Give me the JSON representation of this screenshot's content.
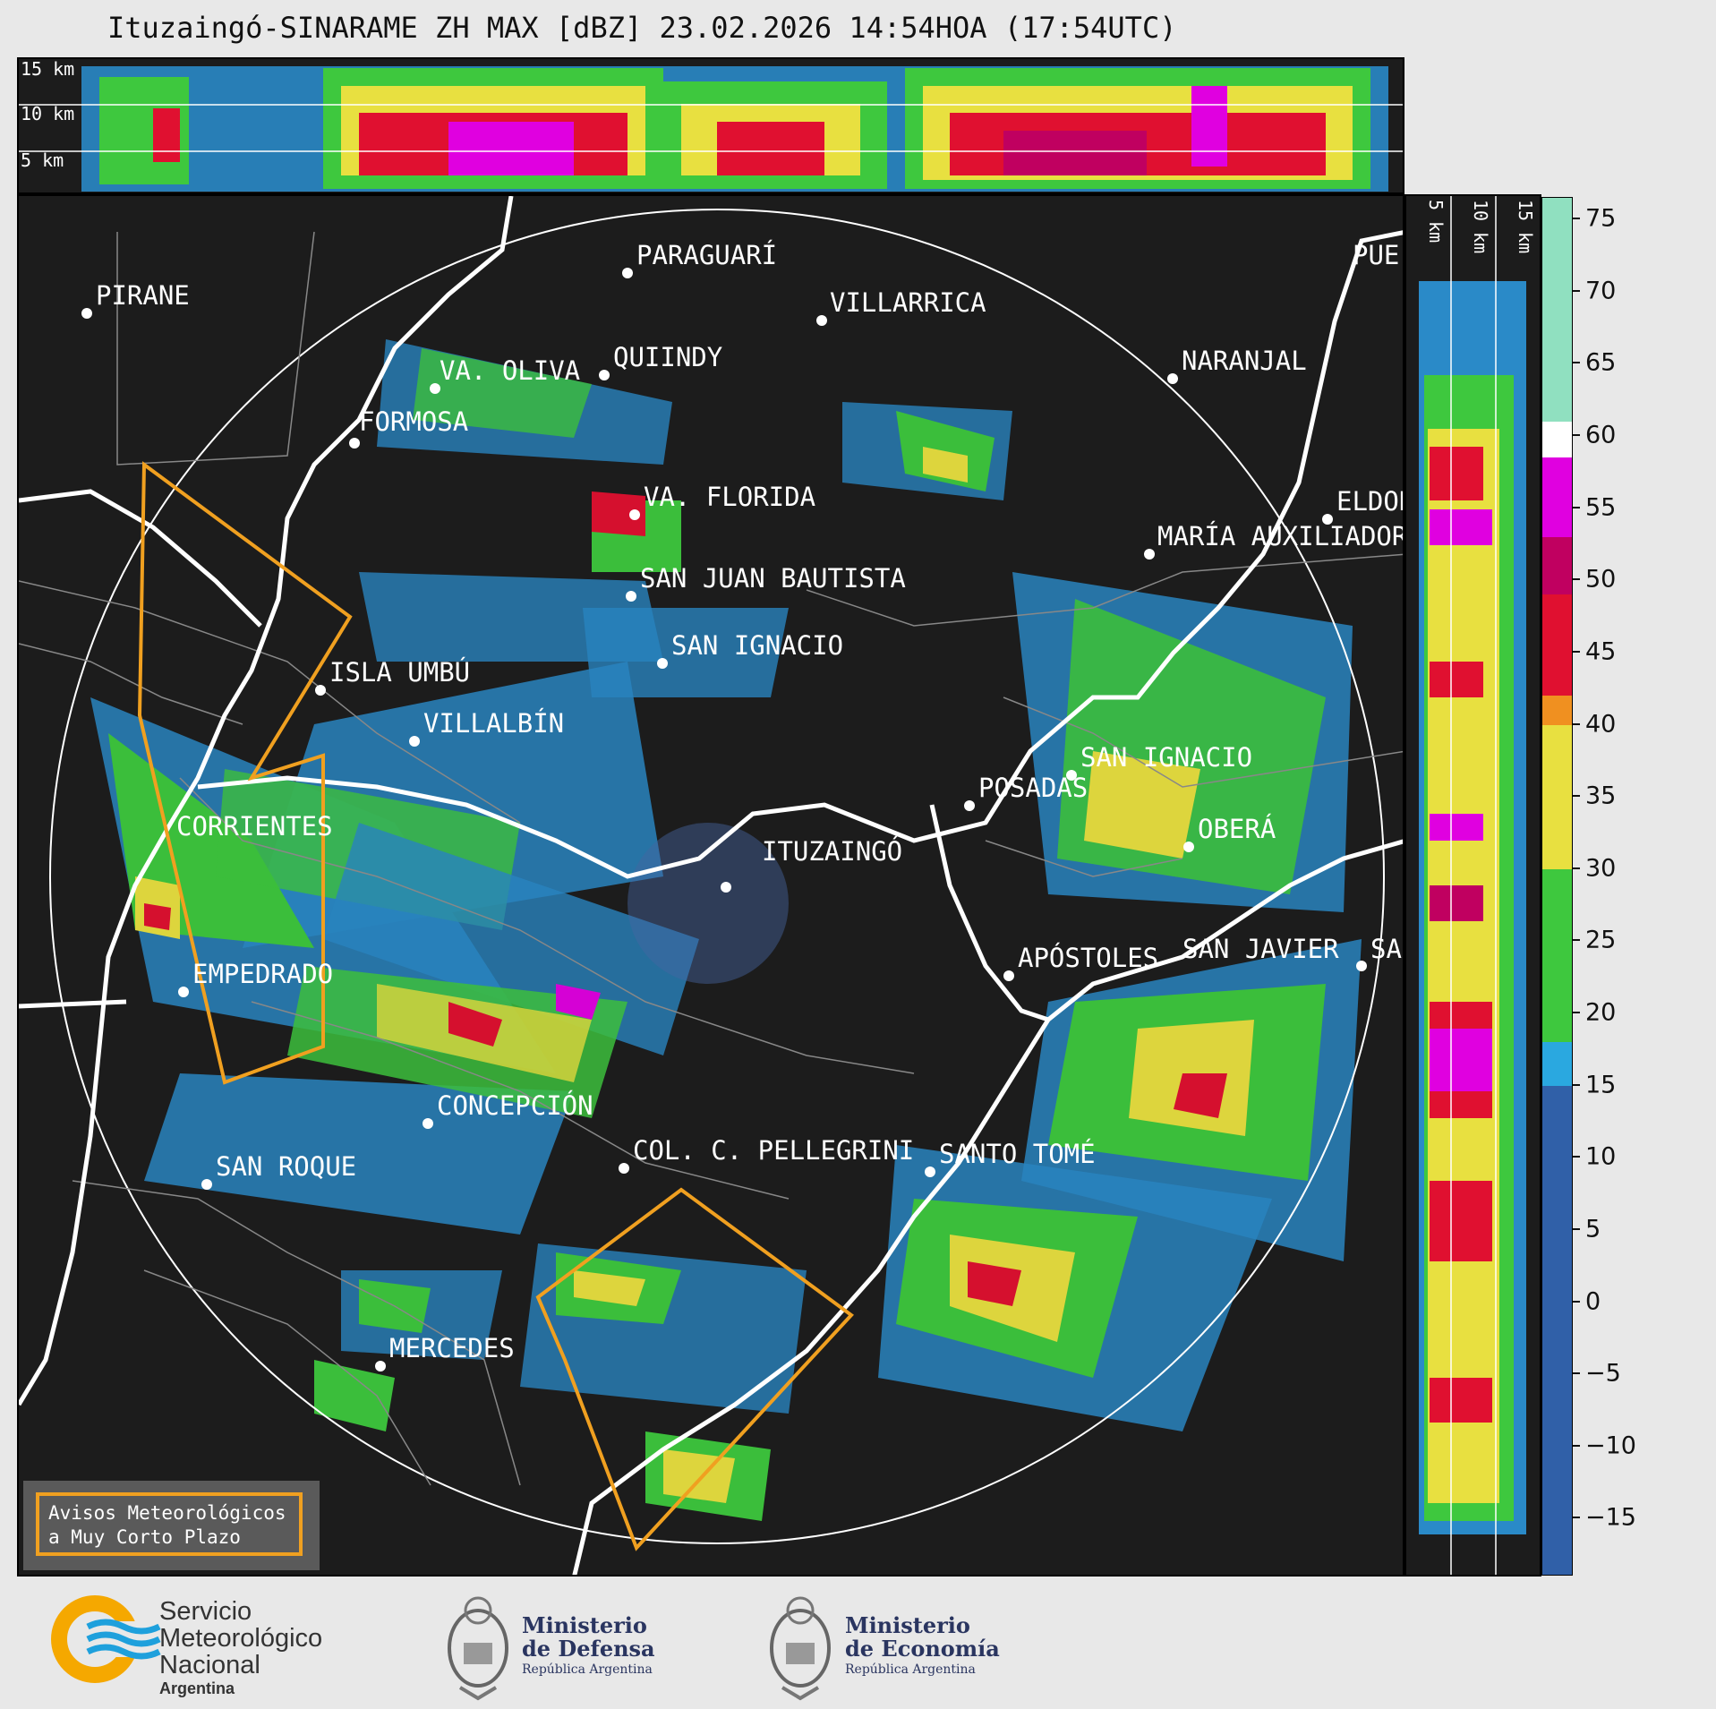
{
  "title": "Ituzaingó-SINARAME ZH MAX [dBZ] 23.02.2026 14:54HOA (17:54UTC)",
  "cross_section_top": {
    "height_labels": [
      "15 km",
      "10 km",
      "5 km"
    ]
  },
  "cross_section_side": {
    "height_labels": [
      "5 km",
      "10 km",
      "15 km"
    ]
  },
  "map": {
    "radar_site": "ITUZAINGÓ",
    "cities": [
      {
        "name": "PIRANE"
      },
      {
        "name": "PARAGUARÍ"
      },
      {
        "name": "VILLARRICA"
      },
      {
        "name": "PUE"
      },
      {
        "name": "QUIINDY"
      },
      {
        "name": "VA. OLIVA"
      },
      {
        "name": "NARANJAL"
      },
      {
        "name": "FORMOSA"
      },
      {
        "name": "VA. FLORIDA"
      },
      {
        "name": "ELDOR"
      },
      {
        "name": "MARÍA AUXILIADOR"
      },
      {
        "name": "SAN JUAN BAUTISTA"
      },
      {
        "name": "SAN IGNACIO"
      },
      {
        "name": "ISLA UMBÚ"
      },
      {
        "name": "VILLALBÍN"
      },
      {
        "name": "SAN IGNACIO"
      },
      {
        "name": "POSADAS"
      },
      {
        "name": "CORRIENTES"
      },
      {
        "name": "ITUZAINGÓ"
      },
      {
        "name": "OBERÁ"
      },
      {
        "name": "APÓSTOLES"
      },
      {
        "name": "SAN JAVIER"
      },
      {
        "name": "SA"
      },
      {
        "name": "EMPEDRADO"
      },
      {
        "name": "CONCEPCIÓN"
      },
      {
        "name": "COL. C. PELLEGRINI"
      },
      {
        "name": "SANTO TOMÉ"
      },
      {
        "name": "SAN ROQUE"
      },
      {
        "name": "MERCEDES"
      }
    ]
  },
  "colorbar": {
    "unit": "dBZ",
    "ticks": [
      "75",
      "70",
      "65",
      "60",
      "55",
      "50",
      "45",
      "40",
      "35",
      "30",
      "25",
      "20",
      "15",
      "10",
      "5",
      "0",
      "−5",
      "−10",
      "−15"
    ],
    "tick_values": [
      75,
      70,
      65,
      60,
      55,
      50,
      45,
      40,
      35,
      30,
      25,
      20,
      15,
      10,
      5,
      0,
      -5,
      -10,
      -15
    ],
    "range": [
      -19,
      76.5
    ],
    "bands": [
      {
        "from": -19,
        "to": 15,
        "color": "#3060a8"
      },
      {
        "from": 15,
        "to": 18,
        "color": "#2aa8e0"
      },
      {
        "from": 18,
        "to": 30,
        "color": "#3ec83e"
      },
      {
        "from": 30,
        "to": 40,
        "color": "#e8e040"
      },
      {
        "from": 40,
        "to": 42,
        "color": "#f09020"
      },
      {
        "from": 42,
        "to": 49,
        "color": "#e01030"
      },
      {
        "from": 49,
        "to": 53,
        "color": "#c00060"
      },
      {
        "from": 53,
        "to": 58.5,
        "color": "#e000e0"
      },
      {
        "from": 58.5,
        "to": 61,
        "color": "#ffffff"
      },
      {
        "from": 61,
        "to": 76.5,
        "color": "#90e0c0"
      }
    ]
  },
  "warning_legend": {
    "line1": "Avisos Meteorológicos",
    "line2": "a Muy Corto Plazo",
    "color": "#f0a020"
  },
  "footer": {
    "smn": {
      "line1": "Servicio",
      "line2": "Meteorológico",
      "line3": "Nacional",
      "line4": "Argentina"
    },
    "defensa": {
      "line1": "Ministerio",
      "line2": "de Defensa",
      "line3": "República Argentina"
    },
    "economia": {
      "line1": "Ministerio",
      "line2": "de Economía",
      "line3": "República Argentina"
    }
  }
}
